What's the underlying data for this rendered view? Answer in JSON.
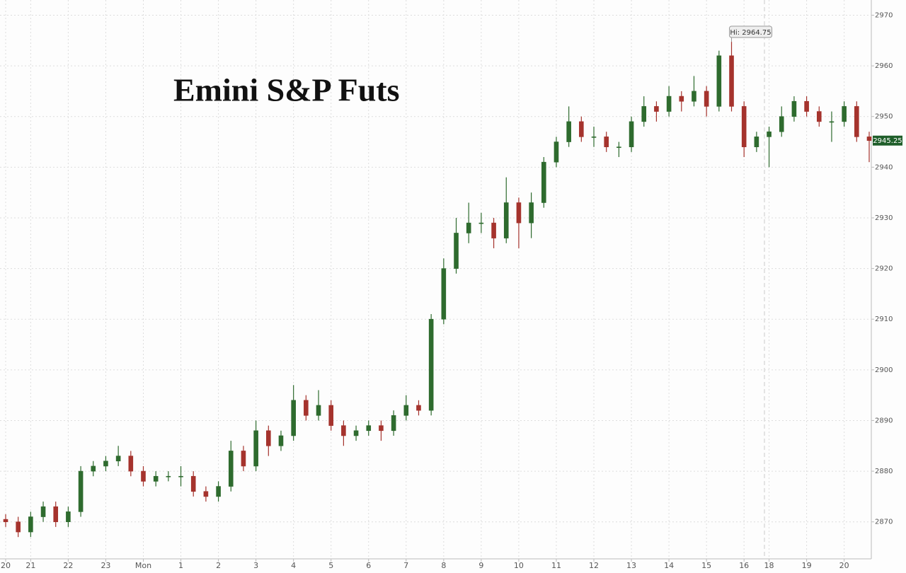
{
  "chart_data": {
    "type": "candlestick",
    "title": "Emini S&P Futs",
    "annotation": "Hi: 2964.75",
    "categories": [
      "20",
      null,
      "21",
      null,
      null,
      "22",
      null,
      null,
      "23",
      null,
      null,
      "Mon",
      null,
      null,
      "1",
      null,
      null,
      "2",
      null,
      null,
      "3",
      null,
      null,
      "4",
      null,
      null,
      "5",
      null,
      null,
      "6",
      null,
      null,
      "7",
      null,
      null,
      "8",
      null,
      null,
      "9",
      null,
      null,
      "10",
      null,
      null,
      "11",
      null,
      null,
      "12",
      null,
      null,
      "13",
      null,
      null,
      "14",
      null,
      null,
      "15",
      null,
      null,
      "16",
      null,
      "18",
      null,
      null,
      "19",
      null,
      null,
      "20",
      null,
      null
    ],
    "open": [
      2870.5,
      2870,
      2868,
      2871,
      2873,
      2870,
      2872,
      2880,
      2881,
      2882,
      2883,
      2880,
      2878,
      2879,
      2879,
      2879,
      2876,
      2875,
      2877,
      2884,
      2881,
      2888,
      2885,
      2887,
      2894,
      2891,
      2893,
      2889,
      2887,
      2888,
      2889,
      2888,
      2891,
      2893,
      2892,
      2910,
      2920,
      2927,
      2929,
      2929,
      2926,
      2933,
      2929,
      2933,
      2941,
      2945,
      2949,
      2946,
      2946,
      2944,
      2944,
      2949,
      2952,
      2951,
      2954,
      2953,
      2955,
      2952,
      2962,
      2952,
      2944,
      2946,
      2947,
      2950,
      2953,
      2951,
      2949,
      2949,
      2952,
      2946
    ],
    "high": [
      2871.5,
      2871,
      2872,
      2874,
      2874,
      2873,
      2881,
      2882,
      2883,
      2885,
      2884,
      2881,
      2880,
      2880,
      2881,
      2880,
      2877,
      2878,
      2886,
      2885,
      2890,
      2889,
      2888,
      2897,
      2895,
      2896,
      2894,
      2890,
      2889,
      2890,
      2890,
      2892,
      2895,
      2894,
      2911,
      2922,
      2930,
      2933,
      2931,
      2930,
      2938,
      2934,
      2935,
      2942,
      2946,
      2952,
      2950,
      2948,
      2947,
      2945,
      2950,
      2954,
      2953,
      2956,
      2955,
      2958,
      2956,
      2963,
      2964.75,
      2953,
      2947,
      2948,
      2952,
      2954,
      2954,
      2952,
      2951,
      2953,
      2953,
      2947
    ],
    "low": [
      2869,
      2867,
      2867,
      2870,
      2869,
      2869,
      2871,
      2879,
      2880,
      2881,
      2879,
      2877,
      2877,
      2878,
      2877,
      2875,
      2874,
      2874,
      2876,
      2880,
      2880,
      2883,
      2884,
      2886,
      2890,
      2890,
      2888,
      2885,
      2886,
      2887,
      2886,
      2887,
      2890,
      2891,
      2891,
      2909,
      2919,
      2925,
      2927,
      2924,
      2925,
      2924,
      2926,
      2932,
      2940,
      2944,
      2945,
      2944,
      2943,
      2942,
      2943,
      2948,
      2949,
      2950,
      2951,
      2952,
      2950,
      2951,
      2951,
      2942,
      2943,
      2940,
      2946,
      2949,
      2950,
      2948,
      2945,
      2948,
      2945,
      2941
    ],
    "close": [
      2870,
      2868,
      2871,
      2873,
      2870,
      2872,
      2880,
      2881,
      2882,
      2883,
      2880,
      2878,
      2879,
      2879,
      2879,
      2876,
      2875,
      2877,
      2884,
      2881,
      2888,
      2885,
      2887,
      2894,
      2891,
      2893,
      2889,
      2887,
      2888,
      2889,
      2888,
      2891,
      2893,
      2892,
      2910,
      2920,
      2927,
      2929,
      2929,
      2926,
      2933,
      2929,
      2933,
      2941,
      2945,
      2949,
      2946,
      2946,
      2944,
      2944,
      2949,
      2952,
      2951,
      2954,
      2953,
      2955,
      2952,
      2962,
      2952,
      2944,
      2946,
      2947,
      2950,
      2953,
      2951,
      2949,
      2949,
      2952,
      2946,
      2945.25
    ],
    "up_color": "#2e6b2e",
    "down_color": "#a5332d",
    "ylim": [
      2862,
      2973
    ],
    "yticks": [
      2870,
      2880,
      2890,
      2900,
      2910,
      2920,
      2930,
      2940,
      2950,
      2960,
      2970
    ],
    "grid": true
  }
}
